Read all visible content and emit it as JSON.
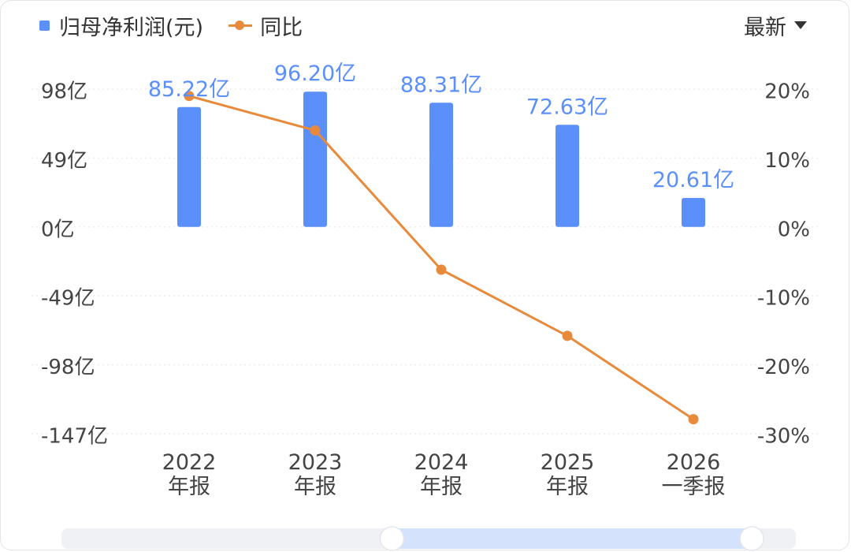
{
  "legend": {
    "bar_label": "归母净利润(元)",
    "line_label": "同比"
  },
  "selector": {
    "label": "最新",
    "icon": "caret-down-icon"
  },
  "colors": {
    "bar": "#5b8ff9",
    "line": "#e88a3c",
    "grid": "#eeeeee",
    "scroll_track": "#f0f1f4",
    "scroll_selected": "#d5e2fb"
  },
  "chart_data": {
    "type": "bar",
    "categories": [
      [
        "2022",
        "年报"
      ],
      [
        "2023",
        "年报"
      ],
      [
        "2024",
        "年报"
      ],
      [
        "2025",
        "年报"
      ],
      [
        "2026",
        "一季报"
      ]
    ],
    "series": [
      {
        "name": "归母净利润(元)",
        "type": "bar",
        "axis": "left",
        "values": [
          85.22,
          96.2,
          88.31,
          72.63,
          20.61
        ],
        "labels": [
          "85.22亿",
          "96.20亿",
          "88.31亿",
          "72.63亿",
          "20.61亿"
        ]
      },
      {
        "name": "同比",
        "type": "line",
        "axis": "right",
        "values": [
          19,
          14,
          -6.2,
          -15.8,
          -27.9
        ]
      }
    ],
    "y_left": {
      "ticks": [
        98,
        49,
        0,
        -49,
        -98,
        -147
      ],
      "tick_labels": [
        "98亿",
        "49亿",
        "0亿",
        "-49亿",
        "-98亿",
        "-147亿"
      ],
      "ylim": [
        -147,
        98
      ]
    },
    "y_right": {
      "ticks": [
        20,
        10,
        0,
        -10,
        -20,
        -30
      ],
      "tick_labels": [
        "20%",
        "10%",
        "0%",
        "-10%",
        "-20%",
        "-30%"
      ],
      "ylim": [
        -30,
        20
      ]
    },
    "grid": true,
    "legend_position": "top-left"
  },
  "scrollbar": {
    "range": [
      0.45,
      0.94
    ]
  }
}
